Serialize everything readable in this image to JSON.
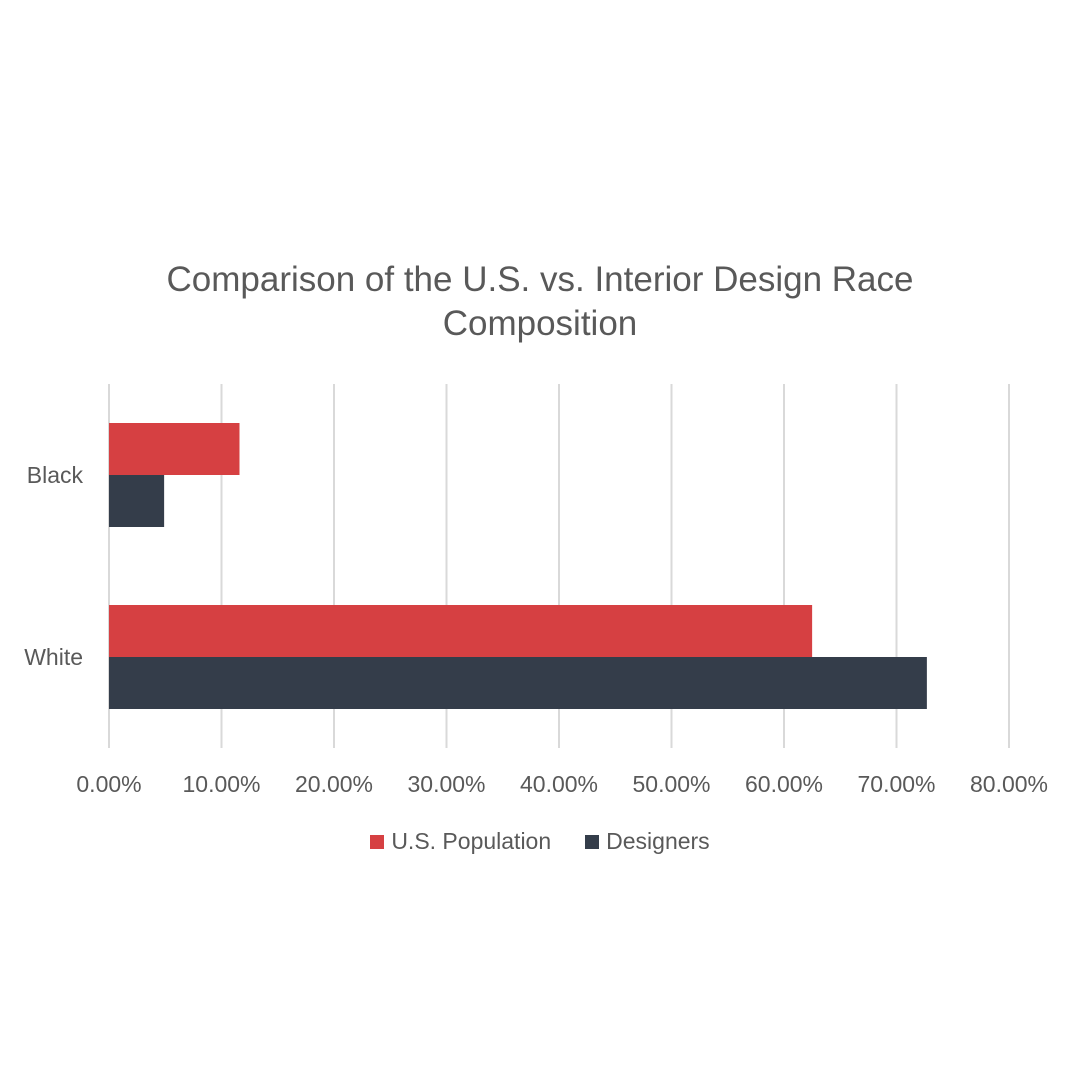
{
  "chart_data": {
    "type": "bar",
    "orientation": "horizontal",
    "title_line1": "Comparison of the U.S. vs. Interior Design Race",
    "title_line2": "Composition",
    "categories": [
      "Black",
      "White"
    ],
    "series": [
      {
        "name": "U.S. Population",
        "color": "#d64042",
        "values": [
          11.6,
          62.5
        ]
      },
      {
        "name": "Designers",
        "color": "#343d4a",
        "values": [
          4.9,
          72.7
        ]
      }
    ],
    "xlim": [
      0,
      80
    ],
    "xticks": [
      0,
      10,
      20,
      30,
      40,
      50,
      60,
      70,
      80
    ],
    "xtick_labels": [
      "0.00%",
      "10.00%",
      "20.00%",
      "30.00%",
      "40.00%",
      "50.00%",
      "60.00%",
      "70.00%",
      "80.00%"
    ],
    "grid": "vertical",
    "legend_position": "bottom"
  }
}
